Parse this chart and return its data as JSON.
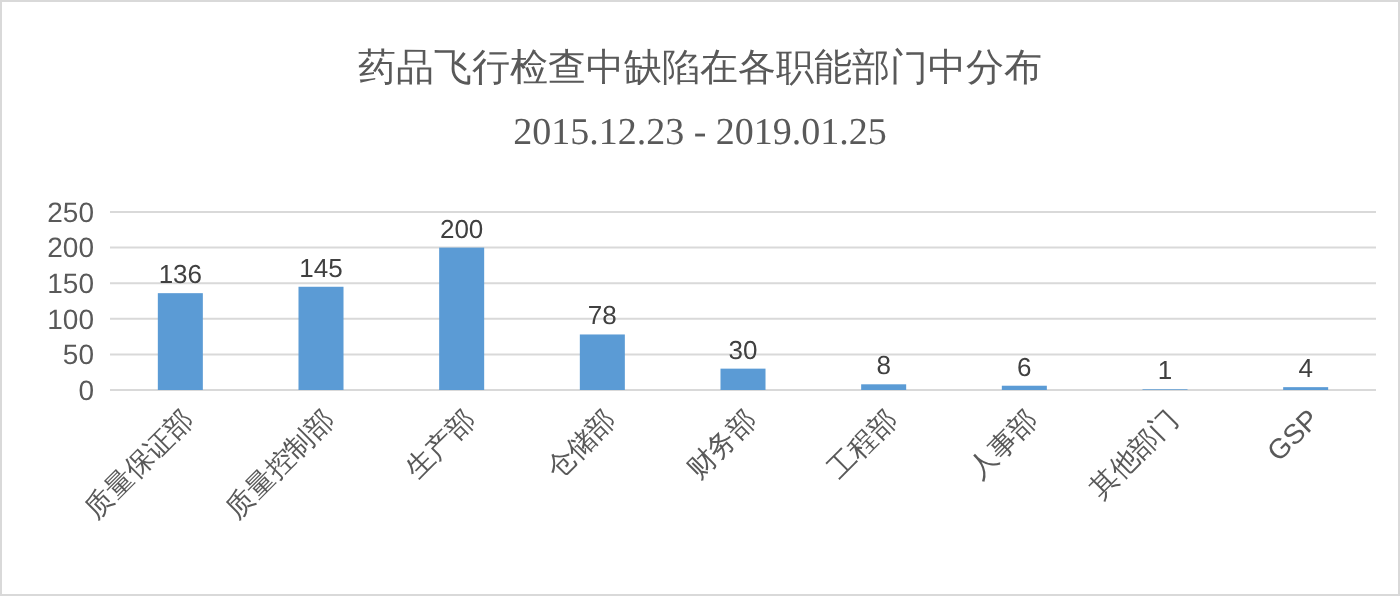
{
  "chart_data": {
    "type": "bar",
    "title": "药品飞行检查中缺陷在各职能部门中分布",
    "subtitle": "2015.12.23 - 2019.01.25",
    "categories": [
      "质量保证部",
      "质量控制部",
      "生产部",
      "仓储部",
      "财务部",
      "工程部",
      "人事部",
      "其他部门",
      "GSP"
    ],
    "values": [
      136,
      145,
      200,
      78,
      30,
      8,
      6,
      1,
      4
    ],
    "color": "#5b9bd5",
    "ylim": [
      0,
      250
    ],
    "yticks": [
      0,
      50,
      100,
      150,
      200,
      250
    ],
    "grid": "y",
    "data_labels": true
  }
}
